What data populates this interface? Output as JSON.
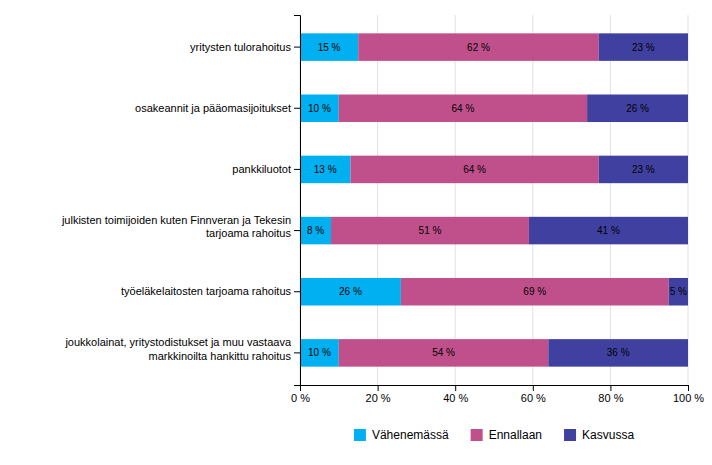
{
  "chart_data": {
    "type": "bar",
    "orientation": "horizontal",
    "stacked": true,
    "data_labels": true,
    "grid": true,
    "legend": "bottom",
    "categories": [
      "yritysten tulorahoitus",
      "osakeannit ja pääomasijoitukset",
      "pankkiluotot",
      "julkisten toimijoiden kuten Finnveran ja Tekesin\ntarjoama rahoitus",
      "työeläkelaitosten tarjoama rahoitus",
      "joukkolainat, yritystodistukset ja muu vastaava\nmarkkinoilta hankittu rahoitus"
    ],
    "series": [
      {
        "name": "Vähenemässä",
        "color": "#00b0f0",
        "values": [
          15,
          10,
          13,
          8,
          26,
          10
        ],
        "value_labels": [
          "15 %",
          "10 %",
          "13 %",
          "8 %",
          "26 %",
          "10 %"
        ]
      },
      {
        "name": "Ennallaan",
        "color": "#c0508c",
        "values": [
          62,
          64,
          64,
          51,
          69,
          54
        ],
        "value_labels": [
          "62 %",
          "64 %",
          "64 %",
          "51 %",
          "69 %",
          "54 %"
        ]
      },
      {
        "name": "Kasvussa",
        "color": "#4040a0",
        "values": [
          23,
          26,
          23,
          41,
          5,
          36
        ],
        "value_labels": [
          "23 %",
          "26 %",
          "23 %",
          "41 %",
          "5 %",
          "36 %"
        ]
      }
    ],
    "xlim": [
      0,
      100
    ],
    "xticks": [
      {
        "value": 0,
        "label": "0 %"
      },
      {
        "value": 20,
        "label": "20 %"
      },
      {
        "value": 40,
        "label": "40 %"
      },
      {
        "value": 60,
        "label": "60 %"
      },
      {
        "value": 80,
        "label": "80 %"
      },
      {
        "value": 100,
        "label": "100 %"
      }
    ]
  }
}
